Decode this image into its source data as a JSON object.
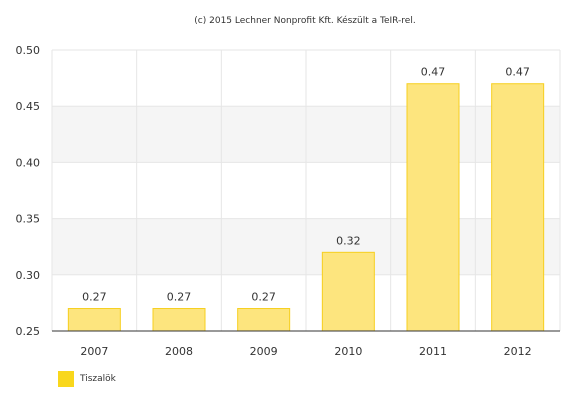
{
  "chart_data": {
    "type": "bar",
    "title": "(c) 2015 Lechner Nonprofit Kft. Készült a TeIR-rel.",
    "categories": [
      "2007",
      "2008",
      "2009",
      "2010",
      "2011",
      "2012"
    ],
    "series": [
      {
        "name": "Tiszalök",
        "values": [
          0.27,
          0.27,
          0.27,
          0.32,
          0.47,
          0.47
        ]
      }
    ],
    "data_labels": [
      "0.27",
      "0.27",
      "0.27",
      "0.32",
      "0.47",
      "0.47"
    ],
    "y_ticks": [
      "0.25",
      "0.30",
      "0.35",
      "0.40",
      "0.45",
      "0.50"
    ],
    "y_tick_values": [
      0.25,
      0.3,
      0.35,
      0.4,
      0.45,
      0.5
    ],
    "ylim": [
      0.25,
      0.5
    ],
    "grid": true,
    "legend_position": "bottom-left",
    "colors": {
      "bar_fill": "#fde57e",
      "bar_stroke": "#f6cf1f",
      "legend_swatch": "#f9d71c",
      "band": "#f5f5f5",
      "grid": "#e6e6e6",
      "axis": "#333333"
    }
  }
}
